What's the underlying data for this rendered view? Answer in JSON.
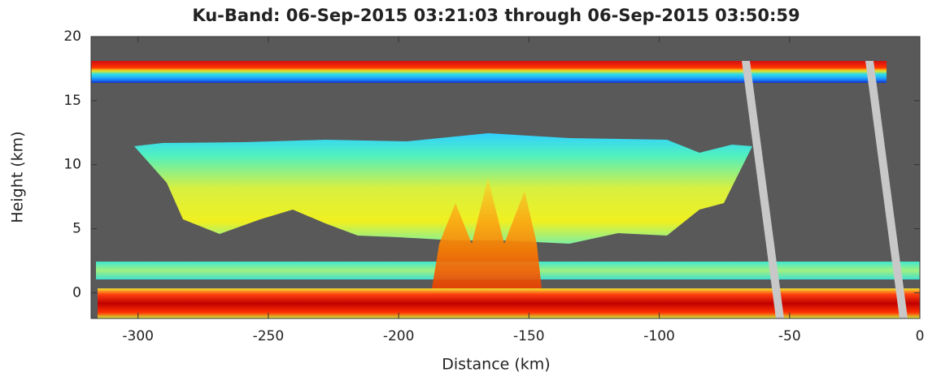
{
  "chart_data": {
    "type": "radar-curtain",
    "title": "Ku-Band: 06-Sep-2015 03:21:03 through 06-Sep-2015 03:50:59",
    "x_label": "Distance (km)",
    "y_label": "Height (km)",
    "xlim": [
      -318,
      0
    ],
    "xticks": [
      -300,
      -250,
      -200,
      -150,
      -100,
      -50,
      0
    ],
    "ylim": [
      -2,
      20
    ],
    "yticks": [
      0,
      5,
      10,
      15,
      20
    ]
  }
}
